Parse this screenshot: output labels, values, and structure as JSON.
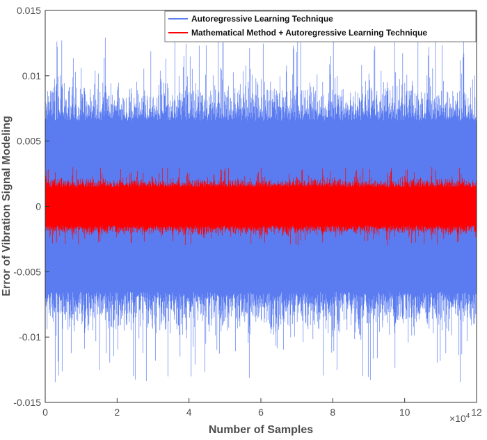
{
  "chart_data": {
    "type": "line",
    "xlabel": "Number of Samples",
    "ylabel": "Error of Vibration Signal Modeling",
    "x_multiplier_label": "×10",
    "x_multiplier_exp": "4",
    "xlim": [
      0,
      120000
    ],
    "ylim": [
      -0.015,
      0.015
    ],
    "x_ticks": [
      0,
      20000,
      40000,
      60000,
      80000,
      100000,
      120000
    ],
    "x_tick_labels": [
      "0",
      "2",
      "4",
      "6",
      "8",
      "10",
      "12"
    ],
    "y_ticks": [
      -0.015,
      -0.01,
      -0.005,
      0,
      0.005,
      0.01,
      0.015
    ],
    "y_tick_labels": [
      "-0.015",
      "-0.01",
      "-0.005",
      "0",
      "0.005",
      "0.01",
      "0.015"
    ],
    "grid": false,
    "legend_position": "top-right",
    "series": [
      {
        "name": "Autoregressive Learning Technique",
        "color": "#5b7cf0",
        "envelope": {
          "typical_max": 0.008,
          "typical_min": -0.008,
          "peak_max": 0.013,
          "peak_min": -0.0135
        }
      },
      {
        "name": "Mathematical Method + Autoregressive Learning Technique",
        "color": "#ff0000",
        "envelope": {
          "typical_max": 0.0018,
          "typical_min": -0.0018,
          "peak_max": 0.003,
          "peak_min": -0.003
        }
      }
    ]
  }
}
